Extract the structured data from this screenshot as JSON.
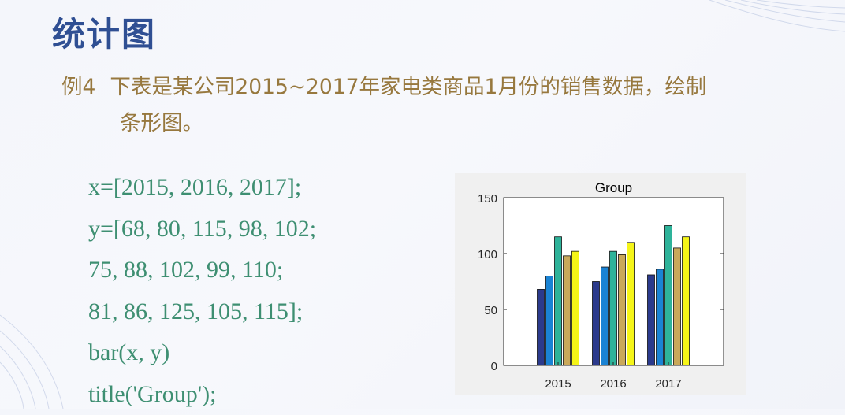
{
  "slide": {
    "title": "统计图",
    "example_label": "例4",
    "description_line1": "下表是某公司2015~2017年家电类商品1月份的销售数据，绘制",
    "description_line2": "条形图。"
  },
  "code": [
    "x=[2015, 2016, 2017];",
    "y=[68, 80, 115, 98, 102;",
    "75, 88, 102, 99, 110;",
    "81, 86, 125, 105, 115];",
    "bar(x, y)",
    "title('Group');"
  ],
  "colors": {
    "title": "#2f4f93",
    "description": "#97783e",
    "code": "#3e8f72",
    "series": [
      "#2b3a8c",
      "#1a83d4",
      "#2eb39a",
      "#c9a85a",
      "#f5f518"
    ]
  },
  "chart_data": {
    "type": "bar",
    "title": "Group",
    "categories": [
      "2015",
      "2016",
      "2017"
    ],
    "series": [
      {
        "values": [
          68,
          75,
          81
        ]
      },
      {
        "values": [
          80,
          88,
          86
        ]
      },
      {
        "values": [
          115,
          102,
          125
        ]
      },
      {
        "values": [
          98,
          99,
          105
        ]
      },
      {
        "values": [
          102,
          110,
          115
        ]
      }
    ],
    "ylim": [
      0,
      150
    ],
    "yticks": [
      "0",
      "50",
      "100",
      "150"
    ],
    "grid": false,
    "legend": false
  }
}
